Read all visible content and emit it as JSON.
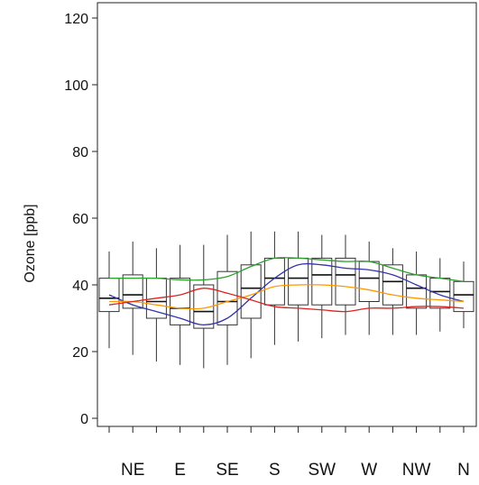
{
  "chart_data": {
    "type": "boxplot",
    "ylabel": "Ozone [ppb]",
    "xlabel": "",
    "ylim": [
      -2,
      122
    ],
    "yticks": [
      0,
      20,
      40,
      60,
      80,
      100,
      120
    ],
    "x_tick_labels": [
      "",
      "NE",
      "",
      "E",
      "",
      "SE",
      "",
      "S",
      "",
      "SW",
      "",
      "W",
      "",
      "NW",
      "",
      "N"
    ],
    "grid": false,
    "boxes": [
      {
        "whisker_low": 21,
        "q1": 32,
        "median": 36,
        "q3": 42,
        "whisker_high": 50
      },
      {
        "whisker_low": 19,
        "q1": 33,
        "median": 37,
        "q3": 43,
        "whisker_high": 53
      },
      {
        "whisker_low": 17,
        "q1": 30,
        "median": 35,
        "q3": 42,
        "whisker_high": 51
      },
      {
        "whisker_low": 16,
        "q1": 28,
        "median": 33,
        "q3": 42,
        "whisker_high": 52
      },
      {
        "whisker_low": 15,
        "q1": 27,
        "median": 32,
        "q3": 40,
        "whisker_high": 52
      },
      {
        "whisker_low": 16,
        "q1": 28,
        "median": 35,
        "q3": 44,
        "whisker_high": 55
      },
      {
        "whisker_low": 18,
        "q1": 30,
        "median": 39,
        "q3": 46,
        "whisker_high": 56
      },
      {
        "whisker_low": 22,
        "q1": 34,
        "median": 42,
        "q3": 48,
        "whisker_high": 56
      },
      {
        "whisker_low": 23,
        "q1": 34,
        "median": 42,
        "q3": 48,
        "whisker_high": 56
      },
      {
        "whisker_low": 24,
        "q1": 34,
        "median": 43,
        "q3": 48,
        "whisker_high": 55
      },
      {
        "whisker_low": 25,
        "q1": 34,
        "median": 43,
        "q3": 48,
        "whisker_high": 55
      },
      {
        "whisker_low": 25,
        "q1": 35,
        "median": 42,
        "q3": 47,
        "whisker_high": 53
      },
      {
        "whisker_low": 25,
        "q1": 34,
        "median": 41,
        "q3": 46,
        "whisker_high": 51
      },
      {
        "whisker_low": 25,
        "q1": 33,
        "median": 39,
        "q3": 43,
        "whisker_high": 50
      },
      {
        "whisker_low": 26,
        "q1": 33,
        "median": 38,
        "q3": 42,
        "whisker_high": 48
      },
      {
        "whisker_low": 27,
        "q1": 32,
        "median": 37,
        "q3": 41,
        "whisker_high": 47
      }
    ],
    "series": [
      {
        "color": "#2ca02c",
        "values": [
          42,
          42,
          42,
          41.5,
          41.5,
          42.5,
          45.5,
          48,
          48,
          47.5,
          47,
          47,
          45,
          43,
          42,
          41
        ]
      },
      {
        "color": "#3333aa",
        "values": [
          37,
          34,
          32,
          30,
          28,
          30,
          36,
          42,
          46,
          46,
          45,
          44.5,
          43,
          40,
          37,
          35
        ]
      },
      {
        "color": "#ff9900",
        "values": [
          35,
          35,
          34,
          33,
          33,
          35,
          37,
          39.5,
          40,
          40,
          39.5,
          38.5,
          37,
          36,
          35.5,
          35
        ]
      },
      {
        "color": "#dd2222",
        "values": [
          34,
          35,
          36,
          37,
          39,
          37.5,
          35.5,
          33.5,
          33,
          32.5,
          32,
          33,
          33,
          33.5,
          33.5,
          33
        ]
      }
    ]
  }
}
